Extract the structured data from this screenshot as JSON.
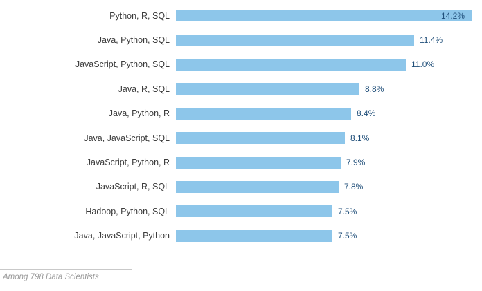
{
  "chart_data": {
    "type": "bar",
    "orientation": "horizontal",
    "title": "",
    "xlabel": "",
    "ylabel": "",
    "grid": false,
    "legend": "none",
    "xlim": [
      0,
      14.2
    ],
    "categories": [
      "Python, R, SQL",
      "Java, Python, SQL",
      "JavaScript, Python, SQL",
      "Java, R, SQL",
      "Java, Python, R",
      "Java, JavaScript, SQL",
      "JavaScript, Python, R",
      "JavaScript, R, SQL",
      "Hadoop, Python, SQL",
      "Java, JavaScript, Python"
    ],
    "values": [
      14.2,
      11.4,
      11.0,
      8.8,
      8.4,
      8.1,
      7.9,
      7.8,
      7.5,
      7.5
    ],
    "value_labels": [
      "14.2%",
      "11.4%",
      "11.0%",
      "8.8%",
      "8.4%",
      "8.1%",
      "7.9%",
      "7.8%",
      "7.5%",
      "7.5%"
    ],
    "bar_color": "#8dc6ea",
    "value_label_color": "#1f4e79",
    "value_label_position": [
      "inside",
      "outside",
      "outside",
      "outside",
      "outside",
      "outside",
      "outside",
      "outside",
      "outside",
      "outside"
    ],
    "footnote": "Among 798 Data Scientists"
  },
  "footer": {
    "note": "Among 798 Data Scientists"
  }
}
